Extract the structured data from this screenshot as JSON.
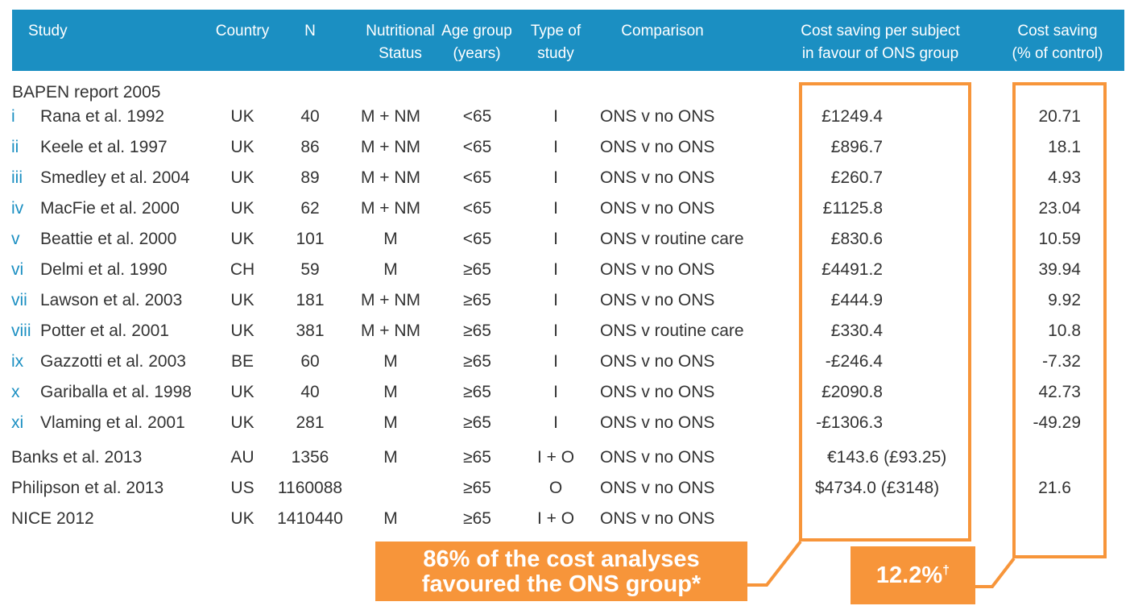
{
  "header": {
    "study": "Study",
    "country": "Country",
    "n": "N",
    "nutritional_status": [
      "Nutritional",
      "Status"
    ],
    "age_group": [
      "Age group",
      "(years)"
    ],
    "type_of_study": [
      "Type of",
      "study"
    ],
    "comparison": "Comparison",
    "cost_saving_per_subject": [
      "Cost saving per subject",
      "in favour of ONS group"
    ],
    "cost_saving_pct": [
      "Cost saving",
      "(% of control)"
    ]
  },
  "section_label": "BAPEN report 2005",
  "rows": [
    {
      "num": "i",
      "study": "Rana et al. 1992",
      "country": "UK",
      "n": "40",
      "status": "M + NM",
      "age": "<65",
      "type": "I",
      "comparison": "ONS v no ONS",
      "saving": "£1249.4",
      "pct": "20.71"
    },
    {
      "num": "ii",
      "study": "Keele et al. 1997",
      "country": "UK",
      "n": "86",
      "status": "M + NM",
      "age": "<65",
      "type": "I",
      "comparison": "ONS v no ONS",
      "saving": "£896.7",
      "pct": "18.1"
    },
    {
      "num": "iii",
      "study": "Smedley et al. 2004",
      "country": "UK",
      "n": "89",
      "status": "M + NM",
      "age": "<65",
      "type": "I",
      "comparison": "ONS v no ONS",
      "saving": "£260.7",
      "pct": "4.93"
    },
    {
      "num": "iv",
      "study": "MacFie et al. 2000",
      "country": "UK",
      "n": "62",
      "status": "M + NM",
      "age": "<65",
      "type": "I",
      "comparison": "ONS v no ONS",
      "saving": "£1125.8",
      "pct": "23.04"
    },
    {
      "num": "v",
      "study": "Beattie et al. 2000",
      "country": "UK",
      "n": "101",
      "status": "M",
      "age": "<65",
      "type": "I",
      "comparison": "ONS v routine care",
      "saving": "£830.6",
      "pct": "10.59"
    },
    {
      "num": "vi",
      "study": "Delmi et al. 1990",
      "country": "CH",
      "n": "59",
      "status": "M",
      "age": "≥65",
      "type": "I",
      "comparison": "ONS v no ONS",
      "saving": "£4491.2",
      "pct": "39.94"
    },
    {
      "num": "vii",
      "study": "Lawson et al. 2003",
      "country": "UK",
      "n": "181",
      "status": "M + NM",
      "age": "≥65",
      "type": "I",
      "comparison": "ONS v no ONS",
      "saving": "£444.9",
      "pct": "9.92"
    },
    {
      "num": "viii",
      "study": "Potter et al. 2001",
      "country": "UK",
      "n": "381",
      "status": "M + NM",
      "age": "≥65",
      "type": "I",
      "comparison": "ONS v routine care",
      "saving": "£330.4",
      "pct": "10.8"
    },
    {
      "num": "ix",
      "study": "Gazzotti et al. 2003",
      "country": "BE",
      "n": "60",
      "status": "M",
      "age": "≥65",
      "type": "I",
      "comparison": "ONS v no ONS",
      "saving": "-£246.4",
      "pct": "-7.32"
    },
    {
      "num": "x",
      "study": "Gariballa et al. 1998",
      "country": "UK",
      "n": "40",
      "status": "M",
      "age": "≥65",
      "type": "I",
      "comparison": "ONS v no ONS",
      "saving": "£2090.8",
      "pct": "42.73"
    },
    {
      "num": "xi",
      "study": "Vlaming et al. 2001",
      "country": "UK",
      "n": "281",
      "status": "M",
      "age": "≥65",
      "type": "I",
      "comparison": "ONS v no ONS",
      "saving": "-£1306.3",
      "pct": "-49.29"
    },
    {
      "num": "",
      "study": "Banks et al. 2013",
      "country": "AU",
      "n": "1356",
      "status": "M",
      "age": "≥65",
      "type": "I + O",
      "comparison": "ONS v no ONS",
      "saving": "€143.6 (£93.25)",
      "pct": ""
    },
    {
      "num": "",
      "study": "Philipson et al. 2013",
      "country": "US",
      "n": "1160088",
      "status": "",
      "age": "≥65",
      "type": "O",
      "comparison": "ONS v no ONS",
      "saving": "$4734.0 (£3148)",
      "pct": "21.6"
    },
    {
      "num": "",
      "study": "NICE 2012",
      "country": "UK",
      "n": "1410440",
      "status": "M",
      "age": "≥65",
      "type": "I + O",
      "comparison": "ONS v no ONS",
      "saving": "",
      "pct": ""
    }
  ],
  "callouts": {
    "cost_analyses": [
      "86% of the cost analyses",
      "favoured the ONS group*"
    ],
    "mean_pct": "12.2%",
    "mean_pct_mark": "†"
  },
  "colors": {
    "header_bg": "#1b8fc2",
    "accent_orange": "#f7953a",
    "roman_numerals": "#1b8fc2",
    "text": "#333333"
  }
}
